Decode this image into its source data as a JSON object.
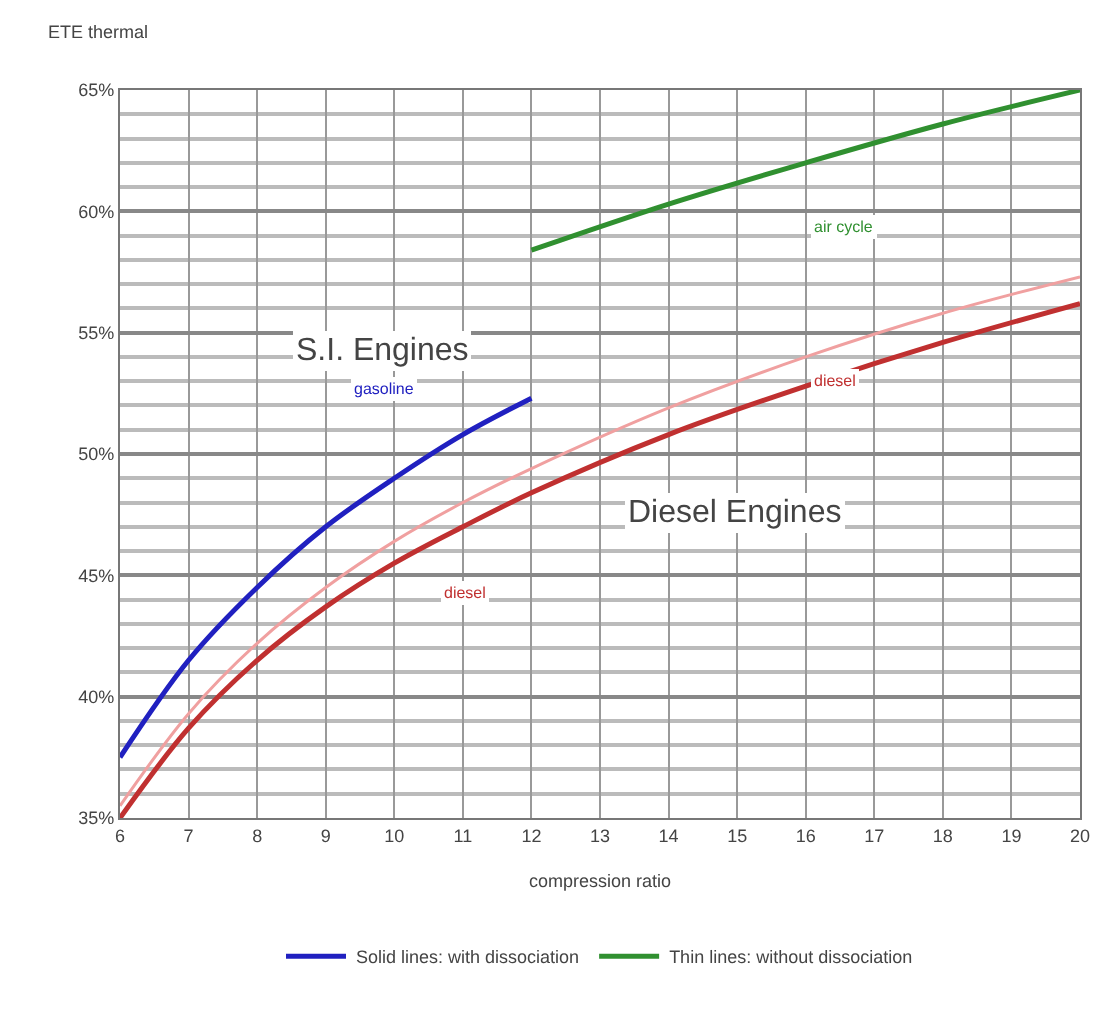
{
  "chart_data": {
    "type": "line",
    "ylabel": "ETE thermal",
    "xlabel": "compression ratio",
    "series": [
      {
        "name": "Solid lines: with dissociation",
        "color": "#2020c0",
        "x": [
          6,
          7,
          8,
          9,
          10,
          11,
          12
        ],
        "values": [
          37.5,
          41.5,
          44.5,
          47,
          49,
          50.8,
          52.3
        ]
      },
      {
        "color": "#f0a0a0",
        "x": [
          6,
          7,
          8,
          9,
          10,
          11,
          12,
          14,
          16,
          18,
          20
        ],
        "values": [
          35.5,
          39.3,
          42.2,
          44.5,
          46.4,
          48,
          49.4,
          51.9,
          54,
          55.8,
          57.3
        ]
      },
      {
        "color": "#c03030",
        "x": [
          6,
          7,
          8,
          9,
          10,
          11,
          12,
          14,
          16,
          18,
          20
        ],
        "values": [
          35,
          38.7,
          41.5,
          43.7,
          45.5,
          47,
          48.4,
          50.8,
          52.8,
          54.6,
          56.2
        ]
      },
      {
        "name": "Thin lines: without dissociation",
        "color": "#309030",
        "x": [
          12,
          14,
          16,
          18,
          20
        ],
        "values": [
          58.4,
          60.3,
          62,
          63.6,
          65
        ]
      }
    ],
    "xlim": [
      6,
      20
    ],
    "xticks": [
      6,
      7,
      8,
      9,
      10,
      11,
      12,
      13,
      14,
      15,
      16,
      17,
      18,
      19,
      20
    ],
    "ylim": [
      35,
      65
    ],
    "yticks": [
      {
        "value": 35,
        "label": "35%"
      },
      {
        "value": 40,
        "label": "40%"
      },
      {
        "value": 45,
        "label": "45%"
      },
      {
        "value": 50,
        "label": "50%"
      },
      {
        "value": 55,
        "label": "55%"
      },
      {
        "value": 60,
        "label": "60%"
      },
      {
        "value": 65,
        "label": "65%"
      }
    ],
    "annotations": [
      "S.I. Engines",
      "Diesel Engines",
      "gasoline",
      "diesel",
      "diesel",
      "air cycle"
    ],
    "grid": true,
    "legend": "bottom",
    "marker": "none",
    "line_style": "solid"
  }
}
